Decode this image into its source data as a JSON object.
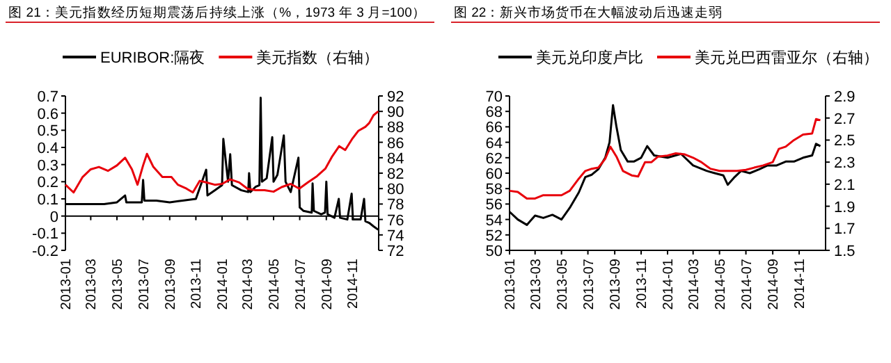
{
  "chart_data": [
    {
      "type": "line",
      "title": "图 21：美元指数经历短期震荡后持续上涨（%，1973 年 3 月=100）",
      "legend": "top",
      "xlim": [
        "2013-01-01",
        "2015-01-01"
      ],
      "xticks": [
        "2013-01",
        "2013-03",
        "2013-05",
        "2013-07",
        "2013-09",
        "2013-11",
        "2014-01",
        "2014-03",
        "2014-05",
        "2014-07",
        "2014-09",
        "2014-11"
      ],
      "ylim": [
        -0.2,
        0.7
      ],
      "yticks": [
        -0.2,
        -0.1,
        0.0,
        0.1,
        0.2,
        0.3,
        0.4,
        0.5,
        0.6,
        0.7
      ],
      "y2lim": [
        72,
        92
      ],
      "y2ticks": [
        72,
        74,
        76,
        78,
        80,
        82,
        84,
        86,
        88,
        90,
        92
      ],
      "series": [
        {
          "name": "EURIBOR:隔夜",
          "color": "#000000",
          "x": [
            "2013-01-01",
            "2013-02-01",
            "2013-03-01",
            "2013-04-01",
            "2013-05-01",
            "2013-05-20",
            "2013-05-23",
            "2013-06-01",
            "2013-06-28",
            "2013-07-01",
            "2013-07-04",
            "2013-08-01",
            "2013-09-01",
            "2013-10-01",
            "2013-11-01",
            "2013-11-25",
            "2013-11-28",
            "2013-12-15",
            "2014-01-01",
            "2014-01-04",
            "2014-01-15",
            "2014-01-20",
            "2014-01-24",
            "2014-02-15",
            "2014-03-03",
            "2014-03-05",
            "2014-03-08",
            "2014-03-20",
            "2014-03-29",
            "2014-04-01",
            "2014-04-04",
            "2014-04-15",
            "2014-04-28",
            "2014-05-01",
            "2014-05-10",
            "2014-05-25",
            "2014-05-29",
            "2014-06-10",
            "2014-06-28",
            "2014-07-01",
            "2014-07-10",
            "2014-07-29",
            "2014-07-31",
            "2014-08-03",
            "2014-08-20",
            "2014-08-29",
            "2014-09-01",
            "2014-09-04",
            "2014-09-20",
            "2014-09-30",
            "2014-10-03",
            "2014-10-20",
            "2014-10-30",
            "2014-11-02",
            "2014-11-20",
            "2014-11-28",
            "2014-12-01",
            "2014-12-10",
            "2014-12-20",
            "2014-12-31"
          ],
          "values": [
            0.07,
            0.07,
            0.07,
            0.07,
            0.08,
            0.12,
            0.08,
            0.08,
            0.08,
            0.21,
            0.09,
            0.09,
            0.08,
            0.09,
            0.1,
            0.27,
            0.12,
            0.15,
            0.18,
            0.45,
            0.2,
            0.36,
            0.18,
            0.15,
            0.14,
            0.25,
            0.14,
            0.17,
            0.18,
            0.69,
            0.2,
            0.22,
            0.46,
            0.2,
            0.24,
            0.47,
            0.2,
            0.14,
            0.34,
            0.05,
            0.03,
            0.02,
            0.19,
            0.03,
            0.01,
            0.02,
            0.2,
            0.01,
            -0.01,
            0.1,
            -0.01,
            -0.02,
            0.13,
            -0.02,
            -0.02,
            0.1,
            -0.03,
            -0.04,
            -0.06,
            -0.08
          ]
        },
        {
          "name": "美元指数（右轴）",
          "color": "#e8000b",
          "axis": "y2",
          "x": [
            "2013-01-01",
            "2013-01-20",
            "2013-02-10",
            "2013-03-01",
            "2013-03-20",
            "2013-04-10",
            "2013-05-01",
            "2013-05-20",
            "2013-06-05",
            "2013-06-18",
            "2013-07-01",
            "2013-07-10",
            "2013-07-25",
            "2013-08-15",
            "2013-09-05",
            "2013-09-20",
            "2013-10-10",
            "2013-10-25",
            "2013-11-10",
            "2013-11-25",
            "2013-12-15",
            "2014-01-01",
            "2014-01-20",
            "2014-02-10",
            "2014-03-01",
            "2014-03-20",
            "2014-04-10",
            "2014-05-01",
            "2014-05-20",
            "2014-06-10",
            "2014-06-30",
            "2014-07-20",
            "2014-08-10",
            "2014-08-30",
            "2014-09-15",
            "2014-10-01",
            "2014-10-15",
            "2014-11-01",
            "2014-11-15",
            "2014-12-01",
            "2014-12-10",
            "2014-12-20",
            "2014-12-31"
          ],
          "values": [
            80.5,
            79.5,
            81.5,
            82.5,
            82.8,
            82.3,
            83.0,
            84.0,
            82.5,
            80.5,
            83.0,
            84.5,
            82.8,
            81.5,
            81.5,
            80.5,
            80.0,
            79.5,
            81.0,
            80.8,
            80.5,
            80.6,
            81.2,
            80.8,
            80.0,
            79.8,
            79.8,
            79.6,
            80.2,
            80.6,
            80.0,
            80.8,
            81.6,
            82.6,
            84.2,
            85.5,
            85.0,
            86.5,
            87.5,
            88.0,
            88.5,
            89.5,
            90.0
          ]
        }
      ]
    },
    {
      "type": "line",
      "title": "图 22：新兴市场货币在大幅波动后迅速走弱",
      "legend": "top",
      "xlim": [
        "2013-01-01",
        "2015-01-01"
      ],
      "xticks": [
        "2013-01",
        "2013-03",
        "2013-05",
        "2013-07",
        "2013-09",
        "2013-11",
        "2014-01",
        "2014-03",
        "2014-05",
        "2014-07",
        "2014-09",
        "2014-11"
      ],
      "ylim": [
        50,
        70
      ],
      "yticks": [
        50,
        52,
        54,
        56,
        58,
        60,
        62,
        64,
        66,
        68,
        70
      ],
      "y2lim": [
        1.5,
        2.9
      ],
      "y2ticks": [
        1.5,
        1.7,
        1.9,
        2.1,
        2.3,
        2.5,
        2.7,
        2.9
      ],
      "series": [
        {
          "name": "美元兑印度卢比",
          "color": "#000000",
          "x": [
            "2013-01-01",
            "2013-01-20",
            "2013-02-10",
            "2013-03-01",
            "2013-03-20",
            "2013-04-10",
            "2013-05-01",
            "2013-05-20",
            "2013-06-10",
            "2013-06-25",
            "2013-07-10",
            "2013-07-25",
            "2013-08-10",
            "2013-08-20",
            "2013-08-28",
            "2013-09-05",
            "2013-09-15",
            "2013-10-01",
            "2013-10-15",
            "2013-11-01",
            "2013-11-15",
            "2013-12-01",
            "2014-01-01",
            "2014-02-01",
            "2014-03-01",
            "2014-04-01",
            "2014-04-20",
            "2014-05-10",
            "2014-05-20",
            "2014-06-05",
            "2014-06-20",
            "2014-07-10",
            "2014-08-01",
            "2014-08-20",
            "2014-09-10",
            "2014-10-01",
            "2014-10-20",
            "2014-11-10",
            "2014-12-01",
            "2014-12-10",
            "2014-12-20"
          ],
          "values": [
            55.0,
            54.0,
            53.3,
            54.5,
            54.2,
            54.6,
            54.0,
            55.5,
            57.5,
            59.5,
            59.8,
            60.5,
            62.0,
            64.0,
            68.8,
            66.0,
            63.0,
            61.5,
            61.5,
            62.0,
            63.5,
            62.3,
            62.0,
            62.5,
            61.0,
            60.3,
            60.0,
            59.7,
            58.5,
            59.5,
            60.3,
            60.0,
            60.5,
            61.0,
            61.0,
            61.5,
            61.5,
            62.0,
            62.3,
            63.8,
            63.5
          ]
        },
        {
          "name": "美元兑巴西雷亚尔（右轴）",
          "color": "#e8000b",
          "axis": "y2",
          "x": [
            "2013-01-01",
            "2013-01-20",
            "2013-02-10",
            "2013-03-01",
            "2013-03-20",
            "2013-04-10",
            "2013-05-01",
            "2013-05-20",
            "2013-06-10",
            "2013-06-25",
            "2013-07-10",
            "2013-07-25",
            "2013-08-10",
            "2013-08-22",
            "2013-09-05",
            "2013-09-20",
            "2013-10-10",
            "2013-10-25",
            "2013-11-10",
            "2013-11-25",
            "2013-12-10",
            "2014-01-01",
            "2014-01-20",
            "2014-02-10",
            "2014-03-01",
            "2014-03-20",
            "2014-04-10",
            "2014-05-01",
            "2014-05-20",
            "2014-06-10",
            "2014-07-01",
            "2014-07-20",
            "2014-08-10",
            "2014-09-01",
            "2014-09-15",
            "2014-10-01",
            "2014-10-20",
            "2014-11-10",
            "2014-12-01",
            "2014-12-10",
            "2014-12-20"
          ],
          "values": [
            2.04,
            2.03,
            1.97,
            1.97,
            2.0,
            2.0,
            2.0,
            2.04,
            2.15,
            2.22,
            2.24,
            2.25,
            2.33,
            2.44,
            2.35,
            2.22,
            2.18,
            2.17,
            2.3,
            2.3,
            2.35,
            2.36,
            2.38,
            2.37,
            2.34,
            2.3,
            2.24,
            2.22,
            2.22,
            2.22,
            2.23,
            2.25,
            2.27,
            2.3,
            2.42,
            2.44,
            2.5,
            2.55,
            2.56,
            2.69,
            2.68
          ]
        }
      ]
    }
  ]
}
